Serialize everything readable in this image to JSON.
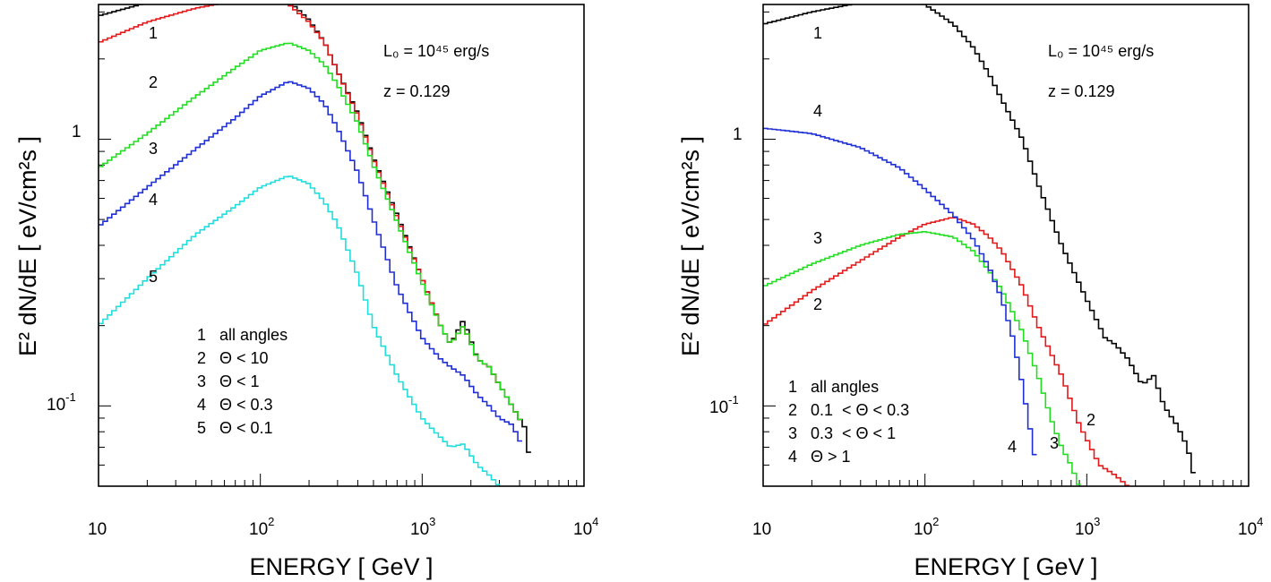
{
  "chart_data": [
    {
      "type": "line",
      "xscale": "log",
      "yscale": "log",
      "xlim": [
        10,
        10000
      ],
      "ylim": [
        0.05,
        3.2
      ],
      "xlabel": "ENERGY [ GeV ]",
      "ylabel": "E² dN/dE [ eV/cm²s ]",
      "xticks": [
        {
          "value": 10,
          "base": "10",
          "exp": ""
        },
        {
          "value": 100,
          "base": "10",
          "exp": "2"
        },
        {
          "value": 1000,
          "base": "10",
          "exp": "3"
        },
        {
          "value": 10000,
          "base": "10",
          "exp": "4"
        }
      ],
      "yticks": [
        {
          "value": 1,
          "base": "1",
          "exp": ""
        },
        {
          "value": 0.1,
          "base": "10",
          "exp": "-1"
        }
      ],
      "annotations": {
        "luminosity": "L₀ = 10⁴⁵ erg/s",
        "redshift": "z = 0.129"
      },
      "legend": [
        "1   all angles",
        "2   Θ < 10",
        "3   Θ < 1",
        "4   Θ < 0.3",
        "5   Θ < 0.1"
      ],
      "series": [
        {
          "label": "1",
          "color": "#000000",
          "points": [
            [
              10,
              2.9
            ],
            [
              20,
              3.25
            ],
            [
              40,
              3.5
            ],
            [
              70,
              3.6
            ],
            [
              100,
              3.55
            ],
            [
              150,
              3.3
            ],
            [
              200,
              2.8
            ],
            [
              250,
              2.3
            ],
            [
              300,
              1.8
            ],
            [
              400,
              1.25
            ],
            [
              500,
              0.85
            ],
            [
              700,
              0.52
            ],
            [
              1000,
              0.3
            ],
            [
              1300,
              0.2
            ],
            [
              1500,
              0.17
            ],
            [
              1800,
              0.21
            ],
            [
              2200,
              0.15
            ],
            [
              2600,
              0.14
            ],
            [
              3000,
              0.12
            ],
            [
              3600,
              0.1
            ],
            [
              4200,
              0.085
            ],
            [
              4500,
              0.08
            ],
            [
              4600,
              0.06
            ]
          ]
        },
        {
          "label": "2",
          "color": "#e41a1a",
          "points": [
            [
              10,
              2.3
            ],
            [
              20,
              2.75
            ],
            [
              40,
              3.1
            ],
            [
              70,
              3.3
            ],
            [
              100,
              3.35
            ],
            [
              150,
              3.2
            ],
            [
              200,
              2.75
            ],
            [
              250,
              2.3
            ],
            [
              300,
              1.8
            ],
            [
              400,
              1.23
            ],
            [
              500,
              0.84
            ],
            [
              700,
              0.51
            ],
            [
              1000,
              0.3
            ],
            [
              1300,
              0.2
            ],
            [
              1500,
              0.17
            ],
            [
              1800,
              0.2
            ],
            [
              2200,
              0.15
            ],
            [
              2600,
              0.14
            ],
            [
              3000,
              0.12
            ],
            [
              3600,
              0.1
            ],
            [
              4200,
              0.085
            ]
          ]
        },
        {
          "label": "3",
          "color": "#22dd22",
          "points": [
            [
              10,
              0.78
            ],
            [
              20,
              1.05
            ],
            [
              40,
              1.45
            ],
            [
              70,
              1.85
            ],
            [
              100,
              2.15
            ],
            [
              150,
              2.3
            ],
            [
              200,
              2.15
            ],
            [
              250,
              1.9
            ],
            [
              300,
              1.6
            ],
            [
              400,
              1.15
            ],
            [
              500,
              0.8
            ],
            [
              700,
              0.49
            ],
            [
              1000,
              0.29
            ],
            [
              1300,
              0.2
            ],
            [
              1500,
              0.17
            ],
            [
              1800,
              0.2
            ],
            [
              2200,
              0.15
            ],
            [
              2600,
              0.14
            ],
            [
              3000,
              0.12
            ],
            [
              3600,
              0.1
            ],
            [
              4200,
              0.085
            ]
          ]
        },
        {
          "label": "4",
          "color": "#1f2fd6",
          "points": [
            [
              10,
              0.47
            ],
            [
              20,
              0.66
            ],
            [
              40,
              0.92
            ],
            [
              70,
              1.2
            ],
            [
              100,
              1.45
            ],
            [
              150,
              1.65
            ],
            [
              200,
              1.55
            ],
            [
              250,
              1.35
            ],
            [
              300,
              1.1
            ],
            [
              400,
              0.75
            ],
            [
              500,
              0.5
            ],
            [
              700,
              0.28
            ],
            [
              1000,
              0.18
            ],
            [
              1300,
              0.15
            ],
            [
              1500,
              0.14
            ],
            [
              1800,
              0.13
            ],
            [
              2200,
              0.11
            ],
            [
              2600,
              0.1
            ],
            [
              3000,
              0.09
            ],
            [
              3600,
              0.085
            ],
            [
              4200,
              0.07
            ]
          ]
        },
        {
          "label": "5",
          "color": "#22dddd",
          "points": [
            [
              10,
              0.2
            ],
            [
              20,
              0.3
            ],
            [
              40,
              0.44
            ],
            [
              70,
              0.56
            ],
            [
              100,
              0.66
            ],
            [
              150,
              0.73
            ],
            [
              200,
              0.68
            ],
            [
              250,
              0.58
            ],
            [
              300,
              0.48
            ],
            [
              400,
              0.31
            ],
            [
              500,
              0.2
            ],
            [
              700,
              0.13
            ],
            [
              1000,
              0.09
            ],
            [
              1200,
              0.08
            ],
            [
              1500,
              0.07
            ],
            [
              1800,
              0.072
            ],
            [
              2200,
              0.06
            ],
            [
              2600,
              0.055
            ],
            [
              3000,
              0.05
            ]
          ]
        }
      ]
    },
    {
      "type": "line",
      "xscale": "log",
      "yscale": "log",
      "xlim": [
        10,
        10000
      ],
      "ylim": [
        0.05,
        3.2
      ],
      "xlabel": "ENERGY [ GeV ]",
      "ylabel": "E² dN/dE [ eV/cm²s ]",
      "xticks": [
        {
          "value": 10,
          "base": "10",
          "exp": ""
        },
        {
          "value": 100,
          "base": "10",
          "exp": "2"
        },
        {
          "value": 1000,
          "base": "10",
          "exp": "3"
        },
        {
          "value": 10000,
          "base": "10",
          "exp": "4"
        }
      ],
      "yticks": [
        {
          "value": 1,
          "base": "1",
          "exp": ""
        },
        {
          "value": 0.1,
          "base": "10",
          "exp": "-1"
        }
      ],
      "annotations": {
        "luminosity": "L₀ = 10⁴⁵ erg/s",
        "redshift": "z = 0.129"
      },
      "legend": [
        "1   all angles",
        "2   0.1  < Θ < 0.3",
        "3   0.3  < Θ < 1",
        "4   Θ > 1"
      ],
      "series": [
        {
          "label": "1",
          "color": "#000000",
          "points": [
            [
              10,
              2.7
            ],
            [
              20,
              3.0
            ],
            [
              40,
              3.25
            ],
            [
              70,
              3.35
            ],
            [
              100,
              3.2
            ],
            [
              150,
              2.7
            ],
            [
              200,
              2.2
            ],
            [
              250,
              1.75
            ],
            [
              300,
              1.4
            ],
            [
              400,
              1.0
            ],
            [
              500,
              0.68
            ],
            [
              700,
              0.4
            ],
            [
              1000,
              0.25
            ],
            [
              1300,
              0.18
            ],
            [
              1500,
              0.17
            ],
            [
              1800,
              0.15
            ],
            [
              2200,
              0.12
            ],
            [
              2600,
              0.13
            ],
            [
              3000,
              0.1
            ],
            [
              3600,
              0.085
            ],
            [
              4200,
              0.07
            ],
            [
              4600,
              0.055
            ]
          ]
        },
        {
          "label": "2",
          "color": "#e41a1a",
          "points": [
            [
              10,
              0.2
            ],
            [
              20,
              0.27
            ],
            [
              40,
              0.35
            ],
            [
              70,
              0.43
            ],
            [
              100,
              0.48
            ],
            [
              150,
              0.51
            ],
            [
              200,
              0.48
            ],
            [
              250,
              0.43
            ],
            [
              300,
              0.38
            ],
            [
              400,
              0.28
            ],
            [
              500,
              0.2
            ],
            [
              700,
              0.13
            ],
            [
              900,
              0.085
            ],
            [
              1000,
              0.075
            ],
            [
              1200,
              0.06
            ],
            [
              1500,
              0.055
            ],
            [
              1800,
              0.05
            ]
          ]
        },
        {
          "label": "3",
          "color": "#22dd22",
          "points": [
            [
              10,
              0.28
            ],
            [
              20,
              0.34
            ],
            [
              40,
              0.4
            ],
            [
              70,
              0.44
            ],
            [
              100,
              0.45
            ],
            [
              150,
              0.43
            ],
            [
              200,
              0.38
            ],
            [
              250,
              0.32
            ],
            [
              300,
              0.27
            ],
            [
              400,
              0.19
            ],
            [
              500,
              0.13
            ],
            [
              600,
              0.09
            ],
            [
              700,
              0.07
            ],
            [
              800,
              0.06
            ],
            [
              900,
              0.05
            ]
          ]
        },
        {
          "label": "4",
          "color": "#1f2fd6",
          "points": [
            [
              10,
              1.1
            ],
            [
              20,
              1.05
            ],
            [
              40,
              0.93
            ],
            [
              70,
              0.78
            ],
            [
              100,
              0.65
            ],
            [
              150,
              0.52
            ],
            [
              200,
              0.42
            ],
            [
              250,
              0.33
            ],
            [
              300,
              0.25
            ],
            [
              350,
              0.18
            ],
            [
              400,
              0.12
            ],
            [
              450,
              0.08
            ],
            [
              500,
              0.055
            ]
          ]
        }
      ]
    }
  ]
}
